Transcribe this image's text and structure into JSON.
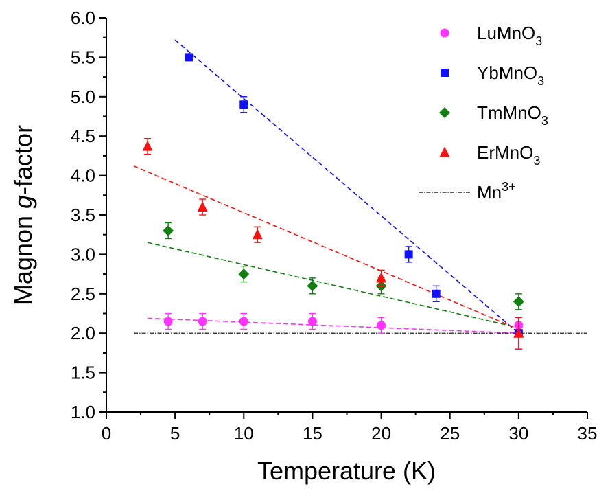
{
  "chart_data": {
    "type": "scatter",
    "xlabel": "Temperature (K)",
    "ylabel": {
      "prefix": "Magnon ",
      "italic": "g",
      "suffix": "-factor"
    },
    "xlim": [
      0,
      35
    ],
    "ylim": [
      1.0,
      6.0
    ],
    "xticks": [
      0,
      5,
      10,
      15,
      20,
      25,
      30,
      35
    ],
    "yticks": [
      1.0,
      1.5,
      2.0,
      2.5,
      3.0,
      3.5,
      4.0,
      4.5,
      5.0,
      5.5,
      6.0
    ],
    "grid": false,
    "legend_position": "top-right",
    "series": [
      {
        "name": "LuMnO",
        "sub": "3",
        "marker": "circle",
        "color": "#ff33ff",
        "points": [
          {
            "x": 4.5,
            "y": 2.15,
            "err": 0.1
          },
          {
            "x": 7,
            "y": 2.15,
            "err": 0.1
          },
          {
            "x": 10,
            "y": 2.15,
            "err": 0.1
          },
          {
            "x": 15,
            "y": 2.15,
            "err": 0.1
          },
          {
            "x": 20,
            "y": 2.1,
            "err": 0.1
          },
          {
            "x": 30,
            "y": 2.1,
            "err": 0.1
          }
        ],
        "fit": {
          "x": [
            3,
            30
          ],
          "y": [
            2.19,
            2.0
          ]
        }
      },
      {
        "name": "YbMnO",
        "sub": "3",
        "marker": "square",
        "color": "#1010ff",
        "points": [
          {
            "x": 6,
            "y": 5.5,
            "err": 0
          },
          {
            "x": 10,
            "y": 4.9,
            "err": 0.1
          },
          {
            "x": 22,
            "y": 3.0,
            "err": 0.1
          },
          {
            "x": 24,
            "y": 2.5,
            "err": 0.1
          },
          {
            "x": 30,
            "y": 2.0,
            "err": 0.2
          }
        ],
        "fit": {
          "x": [
            5,
            30
          ],
          "y": [
            5.72,
            2.0
          ]
        }
      },
      {
        "name": "TmMnO",
        "sub": "3",
        "marker": "diamond",
        "color": "#108010",
        "points": [
          {
            "x": 4.5,
            "y": 3.3,
            "err": 0.1
          },
          {
            "x": 10,
            "y": 2.75,
            "err": 0.1
          },
          {
            "x": 15,
            "y": 2.6,
            "err": 0.1
          },
          {
            "x": 20,
            "y": 2.6,
            "err": 0.1
          },
          {
            "x": 30,
            "y": 2.4,
            "err": 0.1
          }
        ],
        "fit": {
          "x": [
            3,
            30
          ],
          "y": [
            3.15,
            2.07
          ]
        }
      },
      {
        "name": "ErMnO",
        "sub": "3",
        "marker": "triangle",
        "color": "#ff1010",
        "points": [
          {
            "x": 3,
            "y": 4.37,
            "err": 0.1
          },
          {
            "x": 7,
            "y": 3.6,
            "err": 0.1
          },
          {
            "x": 11,
            "y": 3.25,
            "err": 0.1
          },
          {
            "x": 20,
            "y": 2.7,
            "err": 0.1
          },
          {
            "x": 30,
            "y": 2.0,
            "err": 0.2
          }
        ],
        "fit": {
          "x": [
            2,
            30
          ],
          "y": [
            4.12,
            2.05
          ]
        }
      }
    ],
    "reference_line": {
      "name": "Mn",
      "sup": "3+",
      "y": 2.0,
      "x": [
        2,
        35
      ],
      "color": "#000000",
      "style": "dash-dot"
    }
  }
}
